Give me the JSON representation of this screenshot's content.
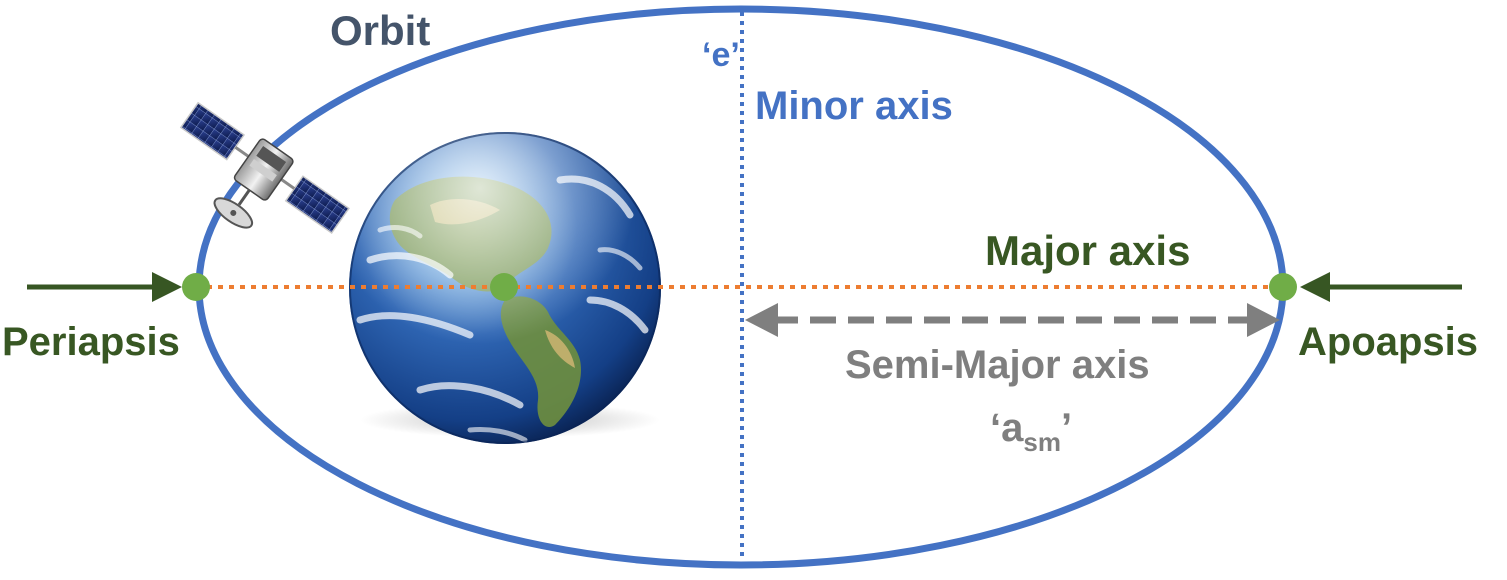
{
  "labels": {
    "orbit": "Orbit",
    "eccentricity": "‘e’",
    "minor_axis": "Minor axis",
    "major_axis": "Major axis",
    "periapsis": "Periapsis",
    "apoapsis": "Apoapsis",
    "semi_major_axis": "Semi-Major axis",
    "asm_open": "‘a",
    "asm_sub": "sm",
    "asm_close": "’"
  },
  "colors": {
    "orbit_line": "#4472C4",
    "orbit_text": "#44546A",
    "minor_axis": "#4472C4",
    "major_axis_line": "#ED7D31",
    "green_text": "#385723",
    "green_point": "#70AD47",
    "arrow_green": "#375623",
    "semi_major": "#7F7F7F"
  },
  "icons": {
    "satellite": "satellite-icon",
    "earth": "earth-globe-icon"
  }
}
